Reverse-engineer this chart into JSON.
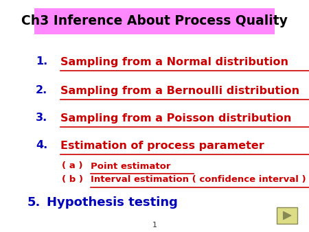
{
  "title": "Ch3 Inference About Process Quality",
  "title_bg": "#FF88FF",
  "title_color": "#000000",
  "title_fontsize": 13.5,
  "bg_color": "#FFFFFF",
  "items": [
    {
      "num": "1.",
      "text": "Sampling from a Normal distribution",
      "color": "#CC0000",
      "underline": true,
      "num_color": "#0000BB",
      "fontsize": 11.5
    },
    {
      "num": "2.",
      "text": "Sampling from a Bernoulli distribution",
      "color": "#CC0000",
      "underline": true,
      "num_color": "#0000BB",
      "fontsize": 11.5
    },
    {
      "num": "3.",
      "text": "Sampling from a Poisson distribution",
      "color": "#CC0000",
      "underline": true,
      "num_color": "#0000BB",
      "fontsize": 11.5
    },
    {
      "num": "4.",
      "text": "Estimation of process parameter",
      "color": "#CC0000",
      "underline": true,
      "num_color": "#0000BB",
      "fontsize": 11.5
    }
  ],
  "sub_items": [
    {
      "prefix": "( a )",
      "text": "Point estimator",
      "color": "#CC0000",
      "underline": true,
      "fontsize": 9.5
    },
    {
      "prefix": "( b )",
      "text": "Interval estimation ( confidence interval )",
      "color": "#CC0000",
      "underline": true,
      "fontsize": 9.5
    }
  ],
  "item5": {
    "num": "5.",
    "text": "Hypothesis testing",
    "color": "#0000BB",
    "num_color": "#0000BB",
    "fontsize": 13
  },
  "footer_num": "1",
  "arrow_color": "#888855",
  "arrow_bg": "#DDDD88",
  "arrow_border": "#888855"
}
